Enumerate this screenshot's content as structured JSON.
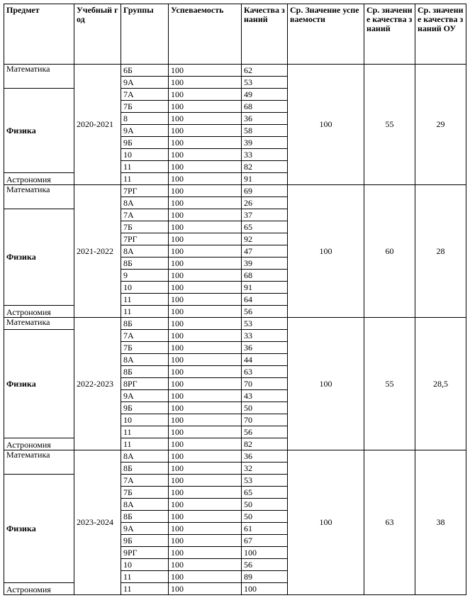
{
  "header": [
    "Предмет",
    "Учебный год",
    "Группы",
    "Успеваемость",
    "Качества знаний",
    "Ср. Значение успеваемости",
    "Ср. значение качества знаний",
    "Ср. значение качества знаний ОУ"
  ],
  "blocks": [
    {
      "year": "2020-2021",
      "subjects": [
        {
          "name": "Математика",
          "rows": [
            {
              "group": "6Б",
              "progress": 100,
              "quality": 62
            },
            {
              "group": "9А",
              "progress": 100,
              "quality": 53
            }
          ]
        },
        {
          "name": "Физика",
          "rows": [
            {
              "group": "7А",
              "progress": 100,
              "quality": 49
            },
            {
              "group": "7Б",
              "progress": 100,
              "quality": 68
            },
            {
              "group": "8",
              "progress": 100,
              "quality": 36
            },
            {
              "group": "9А",
              "progress": 100,
              "quality": 58
            },
            {
              "group": "9Б",
              "progress": 100,
              "quality": 39
            },
            {
              "group": "10",
              "progress": 100,
              "quality": 33
            },
            {
              "group": "11",
              "progress": 100,
              "quality": 82
            }
          ]
        },
        {
          "name": "Астрономия",
          "rows": [
            {
              "group": "11",
              "progress": 100,
              "quality": 91
            }
          ]
        }
      ],
      "avg_progress": 100,
      "avg_quality": 55,
      "avg_quality_ou": 29
    },
    {
      "year": "2021-2022",
      "subjects": [
        {
          "name": "Математика",
          "rows": [
            {
              "group": "7РГ",
              "progress": 100,
              "quality": 69
            },
            {
              "group": "8А",
              "progress": 100,
              "quality": 26
            }
          ]
        },
        {
          "name": "Физика",
          "rows": [
            {
              "group": "7А",
              "progress": 100,
              "quality": 37
            },
            {
              "group": "7Б",
              "progress": 100,
              "quality": 65
            },
            {
              "group": "7РГ",
              "progress": 100,
              "quality": 92
            },
            {
              "group": "8А",
              "progress": 100,
              "quality": 47
            },
            {
              "group": "8Б",
              "progress": 100,
              "quality": 39
            },
            {
              "group": "9",
              "progress": 100,
              "quality": 68
            },
            {
              "group": "10",
              "progress": 100,
              "quality": 91
            },
            {
              "group": "11",
              "progress": 100,
              "quality": 64
            }
          ]
        },
        {
          "name": "Астрономия",
          "rows": [
            {
              "group": "11",
              "progress": 100,
              "quality": 56
            }
          ]
        }
      ],
      "avg_progress": 100,
      "avg_quality": 60,
      "avg_quality_ou": 28
    },
    {
      "year": "2022-2023",
      "subjects": [
        {
          "name": "Математика",
          "rows": [
            {
              "group": "8Б",
              "progress": 100,
              "quality": 53
            }
          ]
        },
        {
          "name": "Физика",
          "rows": [
            {
              "group": "7А",
              "progress": 100,
              "quality": 33
            },
            {
              "group": "7Б",
              "progress": 100,
              "quality": 36
            },
            {
              "group": "8А",
              "progress": 100,
              "quality": 44
            },
            {
              "group": "8Б",
              "progress": 100,
              "quality": 63
            },
            {
              "group": "8РГ",
              "progress": 100,
              "quality": 70
            },
            {
              "group": "9А",
              "progress": 100,
              "quality": 43
            },
            {
              "group": "9Б",
              "progress": 100,
              "quality": 50
            },
            {
              "group": "10",
              "progress": 100,
              "quality": 70
            },
            {
              "group": "11",
              "progress": 100,
              "quality": 56
            }
          ]
        },
        {
          "name": "Астрономия",
          "rows": [
            {
              "group": "11",
              "progress": 100,
              "quality": 82
            }
          ]
        }
      ],
      "avg_progress": 100,
      "avg_quality": 55,
      "avg_quality_ou": "28,5"
    },
    {
      "year": "2023-2024",
      "subjects": [
        {
          "name": "Математика",
          "rows": [
            {
              "group": "8А",
              "progress": 100,
              "quality": 36
            },
            {
              "group": "8Б",
              "progress": 100,
              "quality": 32
            }
          ]
        },
        {
          "name": "Физика",
          "rows": [
            {
              "group": "7А",
              "progress": 100,
              "quality": 53
            },
            {
              "group": "7Б",
              "progress": 100,
              "quality": 65
            },
            {
              "group": "8А",
              "progress": 100,
              "quality": 50
            },
            {
              "group": "8Б",
              "progress": 100,
              "quality": 50
            },
            {
              "group": "9А",
              "progress": 100,
              "quality": 61
            },
            {
              "group": "9Б",
              "progress": 100,
              "quality": 67
            },
            {
              "group": "9РГ",
              "progress": 100,
              "quality": 100
            },
            {
              "group": "10",
              "progress": 100,
              "quality": 56
            },
            {
              "group": "11",
              "progress": 100,
              "quality": 89
            }
          ]
        },
        {
          "name": "Астрономия",
          "rows": [
            {
              "group": "11",
              "progress": 100,
              "quality": 100
            }
          ]
        }
      ],
      "avg_progress": 100,
      "avg_quality": 63,
      "avg_quality_ou": 38
    }
  ]
}
